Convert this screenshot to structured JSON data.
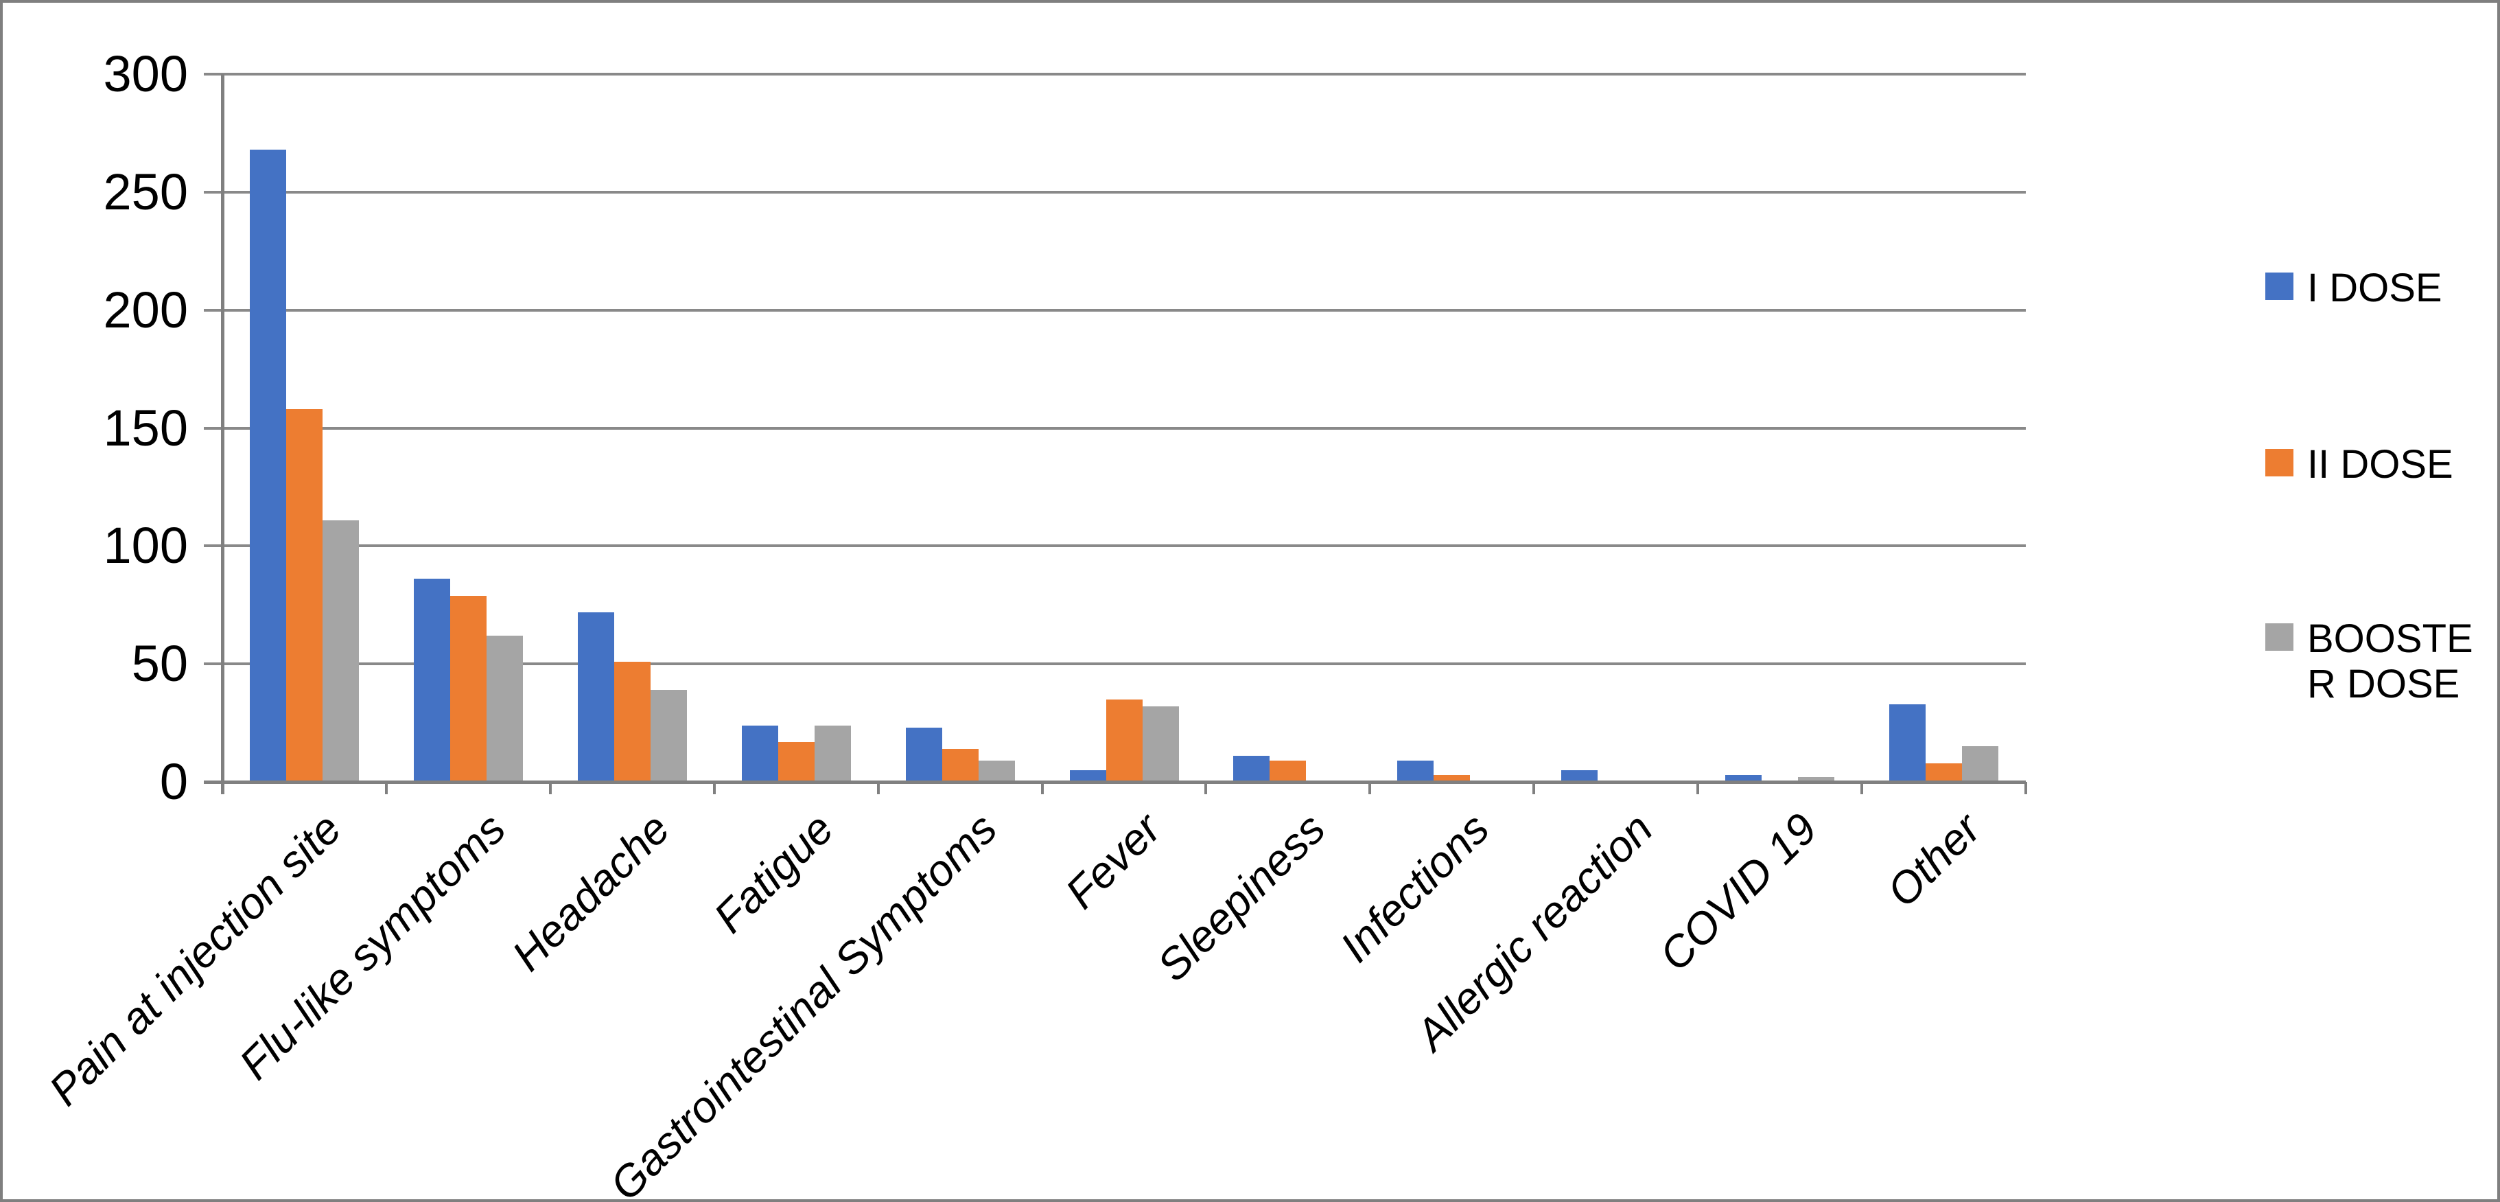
{
  "chart_data": {
    "type": "bar",
    "title": "",
    "xlabel": "",
    "ylabel": "",
    "categories": [
      "Pain at injection site",
      "Flu-like symptoms",
      "Headache",
      "Fatigue",
      "Gastrointestinal Symptoms",
      "Fever",
      "Sleepiness",
      "Infections",
      "Allergic reaction",
      "COVID 19",
      "Other"
    ],
    "series": [
      {
        "name": "I DOSE",
        "color": "#4472C4",
        "values": [
          268,
          86,
          72,
          24,
          23,
          5,
          11,
          9,
          5,
          3,
          33
        ]
      },
      {
        "name": "II DOSE",
        "color": "#ED7D31",
        "values": [
          158,
          79,
          51,
          17,
          14,
          35,
          9,
          3,
          0,
          0,
          8
        ]
      },
      {
        "name": "BOOSTER DOSE",
        "color": "#A5A5A5",
        "values": [
          111,
          62,
          39,
          24,
          9,
          32,
          0,
          0,
          0,
          2,
          15
        ]
      }
    ],
    "ylim": [
      0,
      300
    ],
    "yticks": [
      0,
      50,
      100,
      150,
      200,
      250,
      300
    ],
    "ytick_labels": [
      "0",
      "50",
      "100",
      "150",
      "200",
      "250",
      "300"
    ],
    "grid": true,
    "legend_position": "right",
    "legend": {
      "items": [
        {
          "label": "I DOSE",
          "display_label": "I DOSE"
        },
        {
          "label": "II DOSE",
          "display_label": "II DOSE"
        },
        {
          "label": "BOOSTER DOSE",
          "display_label": "BOOSTE\nR DOSE"
        }
      ]
    },
    "colors": {
      "gridline": "#898989",
      "axis": "#808080",
      "frame_border": "#7F7F7F",
      "background": "#FFFFFF",
      "text": "#000000"
    }
  }
}
